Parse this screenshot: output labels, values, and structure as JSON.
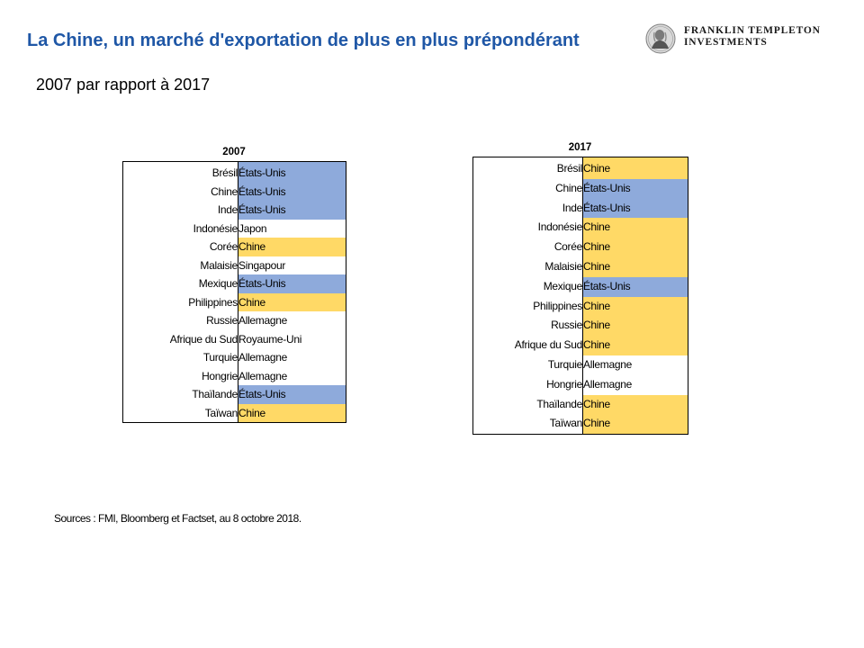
{
  "title": "La Chine, un marché d'exportation de plus en plus prépondérant",
  "subtitle": "2007 par rapport à 2017",
  "logo": {
    "line1": "FRANKLIN TEMPLETON",
    "line2": "INVESTMENTS"
  },
  "colors": {
    "title": "#1f57a6",
    "etats_unis": "#8eaadb",
    "chine": "#ffd966",
    "other": "#ffffff"
  },
  "table_2007": {
    "year": "2007",
    "rows": [
      {
        "country": "Brésil",
        "partner": "États-Unis",
        "color": "blue"
      },
      {
        "country": "Chine",
        "partner": "États-Unis",
        "color": "blue"
      },
      {
        "country": "Inde",
        "partner": "États-Unis",
        "color": "blue"
      },
      {
        "country": "Indonésie",
        "partner": "Japon",
        "color": "none"
      },
      {
        "country": "Corée",
        "partner": "Chine",
        "color": "yellow"
      },
      {
        "country": "Malaisie",
        "partner": "Singapour",
        "color": "none"
      },
      {
        "country": "Mexique",
        "partner": "États-Unis",
        "color": "blue"
      },
      {
        "country": "Philippines",
        "partner": "Chine",
        "color": "yellow"
      },
      {
        "country": "Russie",
        "partner": "Allemagne",
        "color": "none"
      },
      {
        "country": "Afrique du Sud",
        "partner": "Royaume-Uni",
        "color": "none"
      },
      {
        "country": "Turquie",
        "partner": "Allemagne",
        "color": "none"
      },
      {
        "country": "Hongrie",
        "partner": "Allemagne",
        "color": "none"
      },
      {
        "country": "Thaïlande",
        "partner": "États-Unis",
        "color": "blue"
      },
      {
        "country": "Taïwan",
        "partner": "Chine",
        "color": "yellow"
      }
    ]
  },
  "table_2017": {
    "year": "2017",
    "rows": [
      {
        "country": "Brésil",
        "partner": "Chine",
        "color": "yellow"
      },
      {
        "country": "Chine",
        "partner": "États-Unis",
        "color": "blue"
      },
      {
        "country": "Inde",
        "partner": "États-Unis",
        "color": "blue"
      },
      {
        "country": "Indonésie",
        "partner": "Chine",
        "color": "yellow"
      },
      {
        "country": "Corée",
        "partner": "Chine",
        "color": "yellow"
      },
      {
        "country": "Malaisie",
        "partner": "Chine",
        "color": "yellow"
      },
      {
        "country": "Mexique",
        "partner": "États-Unis",
        "color": "blue"
      },
      {
        "country": "Philippines",
        "partner": "Chine",
        "color": "yellow"
      },
      {
        "country": "Russie",
        "partner": "Chine",
        "color": "yellow"
      },
      {
        "country": "Afrique du Sud",
        "partner": "Chine",
        "color": "yellow"
      },
      {
        "country": "Turquie",
        "partner": "Allemagne",
        "color": "none"
      },
      {
        "country": "Hongrie",
        "partner": "Allemagne",
        "color": "none"
      },
      {
        "country": "Thaïlande",
        "partner": "Chine",
        "color": "yellow"
      },
      {
        "country": "Taïwan",
        "partner": "Chine",
        "color": "yellow"
      }
    ]
  },
  "sources": "Sources : FMI, Bloomberg et Factset, au 8 octobre 2018."
}
